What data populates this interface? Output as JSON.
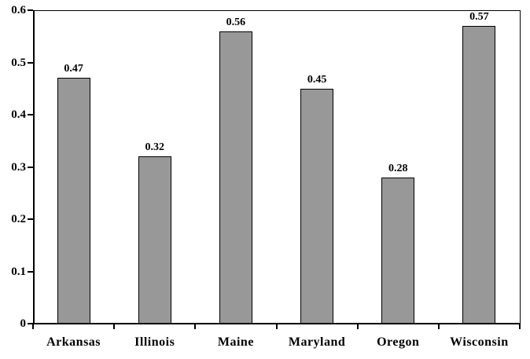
{
  "chart_data": {
    "type": "bar",
    "title": "",
    "xlabel": "",
    "ylabel": "",
    "categories": [
      "Arkansas",
      "Illinois",
      "Maine",
      "Maryland",
      "Oregon",
      "Wisconsin"
    ],
    "values": [
      0.47,
      0.32,
      0.56,
      0.45,
      0.28,
      0.57
    ],
    "data_labels": [
      "0.47",
      "0.32",
      "0.56",
      "0.45",
      "0.28",
      "0.57"
    ],
    "ylim": [
      0,
      0.6
    ],
    "ytick_values": [
      0,
      0.1,
      0.2,
      0.3,
      0.4,
      0.5,
      0.6
    ],
    "ytick_labels": [
      "0",
      "0.1",
      "0.2",
      "0.3",
      "0.4",
      "0.5",
      "0.6"
    ],
    "grid": false,
    "legend": false,
    "colors": {
      "bar_fill": "#989898",
      "bar_border": "#000000",
      "axis": "#000000",
      "background": "#ffffff",
      "text": "#000000"
    }
  }
}
